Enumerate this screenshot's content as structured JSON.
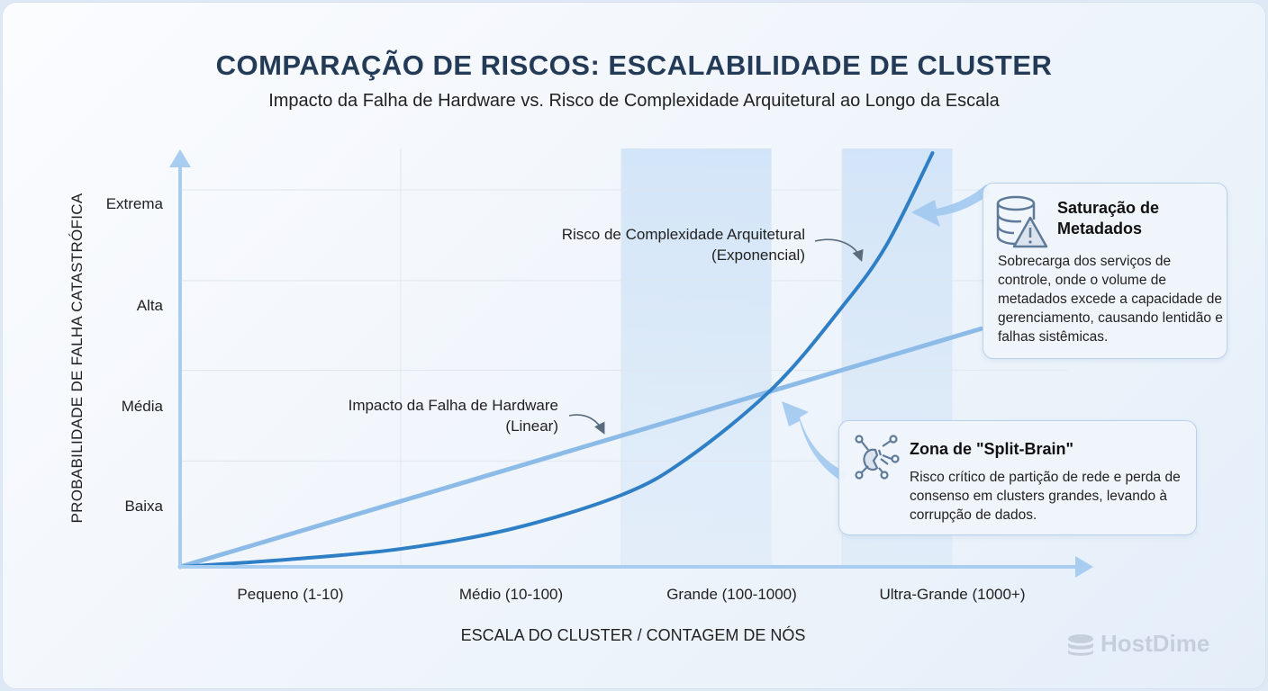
{
  "title": "COMPARAÇÃO DE RISCOS: ESCALABILIDADE DE CLUSTER",
  "subtitle": "Impacto da Falha de Hardware vs. Risco de Complexidade Arquitetural ao Longo da Escala",
  "chart_data": {
    "type": "line",
    "xlabel": "ESCALA DO CLUSTER / CONTAGEM DE NÓS",
    "ylabel": "PROBABILIDADE DE FALHA CATASTRÓFICA",
    "x_categories": [
      "Pequeno (1-10)",
      "Médio (10-100)",
      "Grande (100-1000)",
      "Ultra-Grande (1000+)"
    ],
    "y_categories": [
      "Baixa",
      "Média",
      "Alta",
      "Extrema"
    ],
    "xlim": [
      0,
      4
    ],
    "ylim": [
      0,
      4.4
    ],
    "grid": true,
    "series": [
      {
        "name": "Impacto da Falha de Hardware",
        "name_line2": "(Linear)",
        "color": "#8dbbe8",
        "points": [
          [
            0,
            0
          ],
          [
            3.63,
            2.52
          ]
        ]
      },
      {
        "name": "Risco de Complexidade Arquitetural",
        "name_line2": "(Exponencial)",
        "color": "#2e7fc6",
        "points": [
          [
            0,
            0
          ],
          [
            0.5,
            0.08
          ],
          [
            1,
            0.19
          ],
          [
            1.5,
            0.4
          ],
          [
            2,
            0.76
          ],
          [
            2.3,
            1.15
          ],
          [
            2.69,
            1.9
          ],
          [
            3.0,
            2.75
          ],
          [
            3.2,
            3.4
          ],
          [
            3.41,
            4.38
          ]
        ]
      }
    ],
    "highlight_bands": [
      [
        2,
        2.68
      ],
      [
        3,
        3.5
      ]
    ]
  },
  "callouts": [
    {
      "title": "Saturação de Metadados",
      "icon": "database-warning-icon",
      "text": "Sobrecarga dos serviços de controle, onde o volume de metadados excede a capacidade de gerenciamento, causando lentidão e falhas sistêmicas."
    },
    {
      "title": "Zona de \"Split-Brain\"",
      "icon": "split-brain-network-icon",
      "text": "Risco crítico de partição de rede e perda de consenso em clusters grandes, levando à corrupção de dados."
    }
  ],
  "logo": "HostDime"
}
